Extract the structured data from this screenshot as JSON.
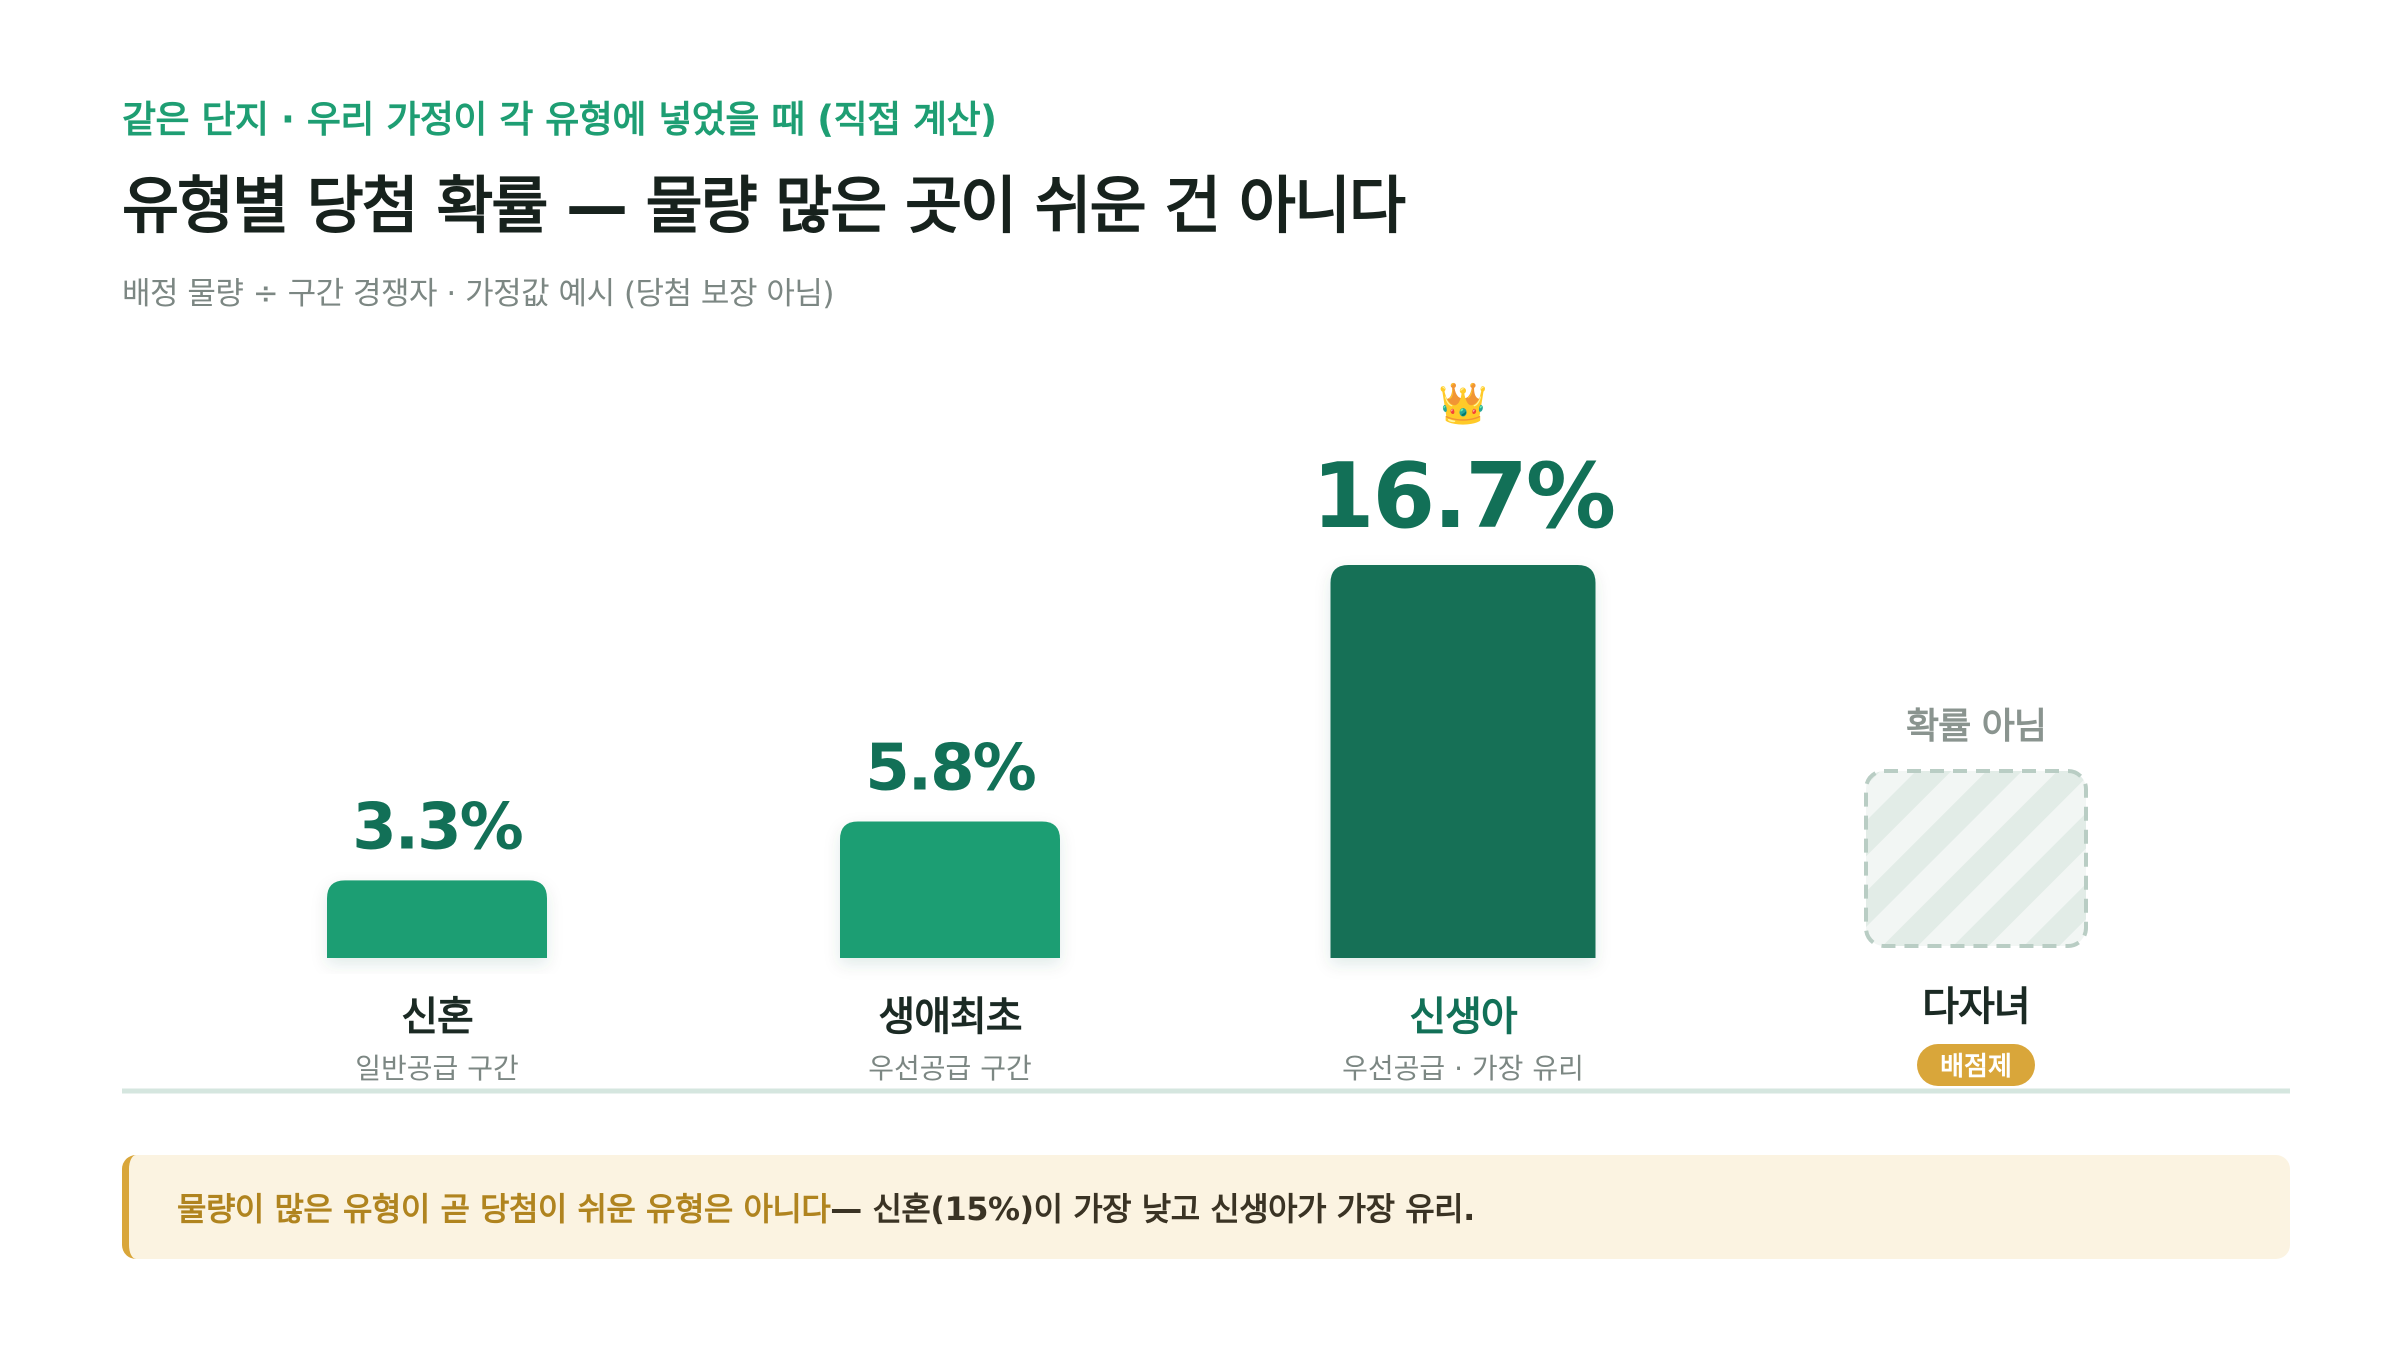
{
  "header": {
    "eyebrow": "같은 단지 · 우리 가정이 각 유형에 넣었을 때 (직접 계산)",
    "title": "유형별 당첨 확률 — 물량 많은 곳이 쉬운 건 아니다",
    "subtitle": "배정 물량 ÷ 구간 경쟁자 · 가정값 예시 (당첨 보장 아님)"
  },
  "chart_data": {
    "type": "bar",
    "ylim": [
      0,
      16.7
    ],
    "grid": false,
    "categories": [
      "신혼",
      "생애최초",
      "신생아",
      "다자녀"
    ],
    "bars": [
      {
        "category": "신혼",
        "sublabel": "일반공급 구간",
        "value": 3.3,
        "label": "3.3%",
        "highlight": false,
        "probability": true
      },
      {
        "category": "생애최초",
        "sublabel": "우선공급 구간",
        "value": 5.8,
        "label": "5.8%",
        "highlight": false,
        "probability": true
      },
      {
        "category": "신생아",
        "sublabel": "우선공급 · 가장 유리",
        "value": 16.7,
        "label": "16.7%",
        "highlight": true,
        "probability": true,
        "crown": "👑"
      },
      {
        "category": "다자녀",
        "sublabel": "",
        "badge": "배점제",
        "value": null,
        "label": "확률 아님",
        "highlight": false,
        "probability": false
      }
    ]
  },
  "colors": {
    "bar": "#1e9e73",
    "bar_highlight": "#127057",
    "value_label": "#127057",
    "placeholder_stroke": "#b9cdc4",
    "placeholder_stripe": "#e2ece7",
    "badge": "#d9a63a",
    "baseline": "#d5e6df",
    "muted": "#7c8783"
  },
  "callout": {
    "highlight": "물량이 많은 유형이 곧 당첨이 쉬운 유형은 아니다",
    "rest": " — 신혼(15%)이 가장 낮고 신생아가 가장 유리."
  }
}
